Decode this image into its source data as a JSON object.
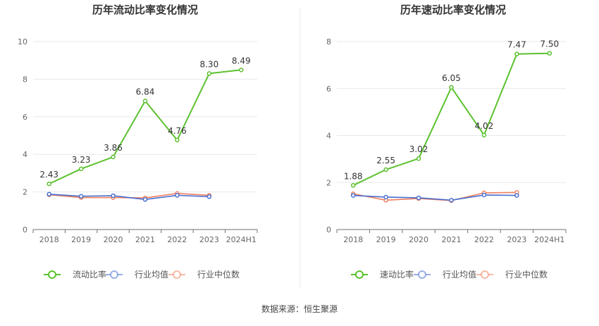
{
  "source": "数据来源：恒生聚源",
  "chart_data": [
    {
      "type": "line",
      "title": "历年流动比率变化情况",
      "categories": [
        "2018",
        "2019",
        "2020",
        "2021",
        "2022",
        "2023",
        "2024H1"
      ],
      "ylim": [
        0,
        10
      ],
      "yticks": [
        0,
        2,
        4,
        6,
        8,
        10
      ],
      "grid": true,
      "legend_position": "bottom",
      "series": [
        {
          "name": "流动比率",
          "color": "#5cc12e",
          "labels": true,
          "values": [
            2.43,
            3.23,
            3.86,
            6.84,
            4.76,
            8.3,
            8.49
          ],
          "value_labels": [
            "2.43",
            "3.23",
            "3.86",
            "6.84",
            "4.76",
            "8.30",
            "8.49"
          ]
        },
        {
          "name": "行业均值",
          "color": "#4a6fd0",
          "labels": false,
          "values": [
            1.88,
            1.77,
            1.8,
            1.6,
            1.82,
            1.75,
            null
          ]
        },
        {
          "name": "行业中位数",
          "color": "#f08060",
          "labels": false,
          "values": [
            1.85,
            1.7,
            1.7,
            1.68,
            1.92,
            1.82,
            null
          ]
        }
      ]
    },
    {
      "type": "line",
      "title": "历年速动比率变化情况",
      "categories": [
        "2018",
        "2019",
        "2020",
        "2021",
        "2022",
        "2023",
        "2024H1"
      ],
      "ylim": [
        0,
        8
      ],
      "yticks": [
        0,
        2,
        4,
        6,
        8
      ],
      "grid": true,
      "legend_position": "bottom",
      "series": [
        {
          "name": "速动比率",
          "color": "#5cc12e",
          "labels": true,
          "values": [
            1.88,
            2.55,
            3.02,
            6.05,
            4.02,
            7.47,
            7.5
          ],
          "value_labels": [
            "1.88",
            "2.55",
            "3.02",
            "6.05",
            "4.02",
            "7.47",
            "7.50"
          ]
        },
        {
          "name": "行业均值",
          "color": "#4a6fd0",
          "labels": false,
          "values": [
            1.45,
            1.38,
            1.35,
            1.25,
            1.47,
            1.45,
            null
          ]
        },
        {
          "name": "行业中位数",
          "color": "#f08060",
          "labels": false,
          "values": [
            1.52,
            1.25,
            1.32,
            1.23,
            1.56,
            1.58,
            null
          ]
        }
      ]
    }
  ]
}
